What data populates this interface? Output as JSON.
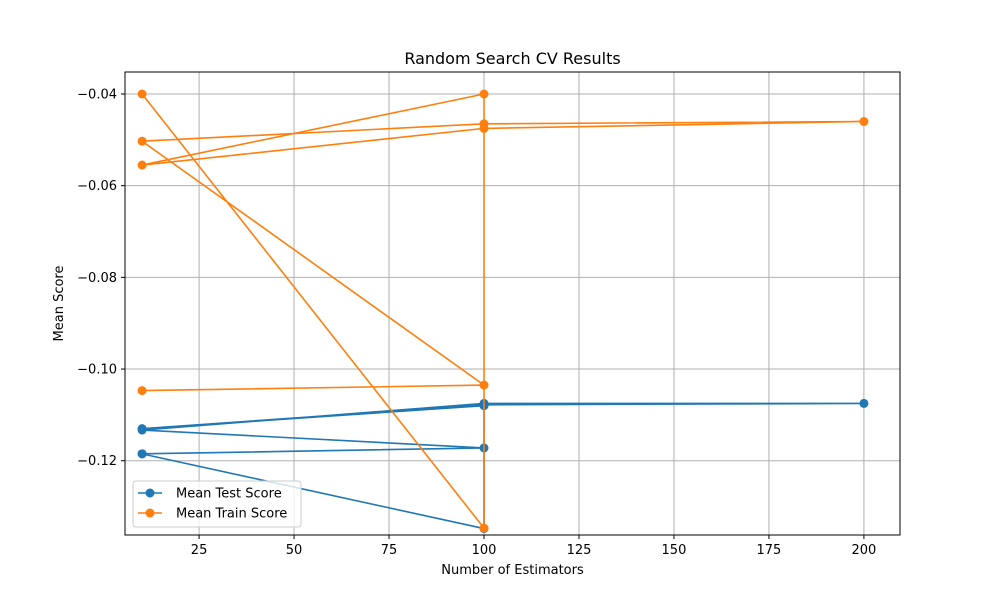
{
  "chart_data": {
    "type": "line",
    "title": "Random Search CV Results",
    "xlabel": "Number of Estimators",
    "ylabel": "Mean Score",
    "xlim": [
      5.5,
      209.5
    ],
    "ylim": [
      -0.1362,
      -0.0352
    ],
    "xticks": [
      25,
      50,
      75,
      100,
      125,
      150,
      175,
      200
    ],
    "yticks": [
      -0.12,
      -0.1,
      -0.08,
      -0.06,
      -0.04
    ],
    "ytick_labels": [
      "−0.12",
      "−0.10",
      "−0.08",
      "−0.06",
      "−0.04"
    ],
    "grid": true,
    "legend_position": "lower-left",
    "marker": "circle",
    "series": [
      {
        "name": "Mean Test Score",
        "color": "#1f77b4",
        "x": [
          10,
          100,
          10,
          100,
          200,
          100,
          10,
          100,
          100,
          10
        ],
        "y": [
          -0.1185,
          -0.1172,
          -0.1133,
          -0.1075,
          -0.1075,
          -0.1078,
          -0.113,
          -0.108,
          -0.1348,
          -0.1185
        ]
      },
      {
        "name": "Mean Train Score",
        "color": "#ff7f0e",
        "x": [
          10,
          100,
          10,
          100,
          200,
          100,
          10,
          100,
          100,
          10
        ],
        "y": [
          -0.1047,
          -0.1035,
          -0.0503,
          -0.0465,
          -0.046,
          -0.0475,
          -0.0555,
          -0.04,
          -0.1347,
          -0.04
        ]
      }
    ]
  }
}
